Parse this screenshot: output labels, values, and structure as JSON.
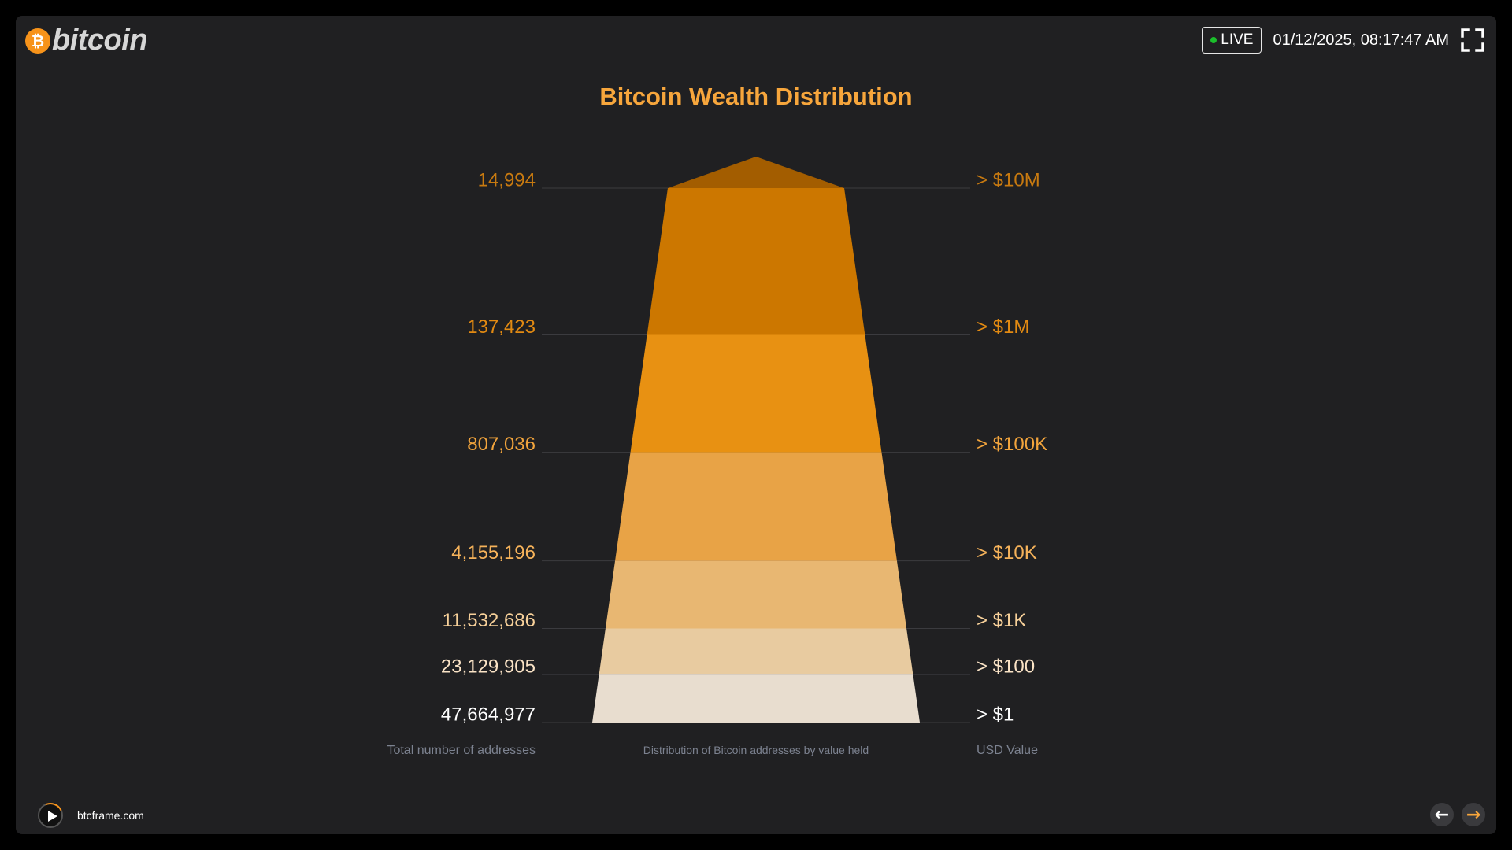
{
  "header": {
    "logo_symbol": "₿",
    "logo_text": "bitcoin",
    "live_label": "LIVE",
    "datetime": "01/12/2025, 08:17:47 AM"
  },
  "colors": {
    "accent": "#f7a63c",
    "live_dot": "#1bbf2b",
    "gridline": "#3b3b3f",
    "caption": "#7c8290"
  },
  "chart_data": {
    "type": "pyramid",
    "title": "Bitcoin Wealth Distribution",
    "left_caption": "Total number of addresses",
    "center_caption": "Distribution of Bitcoin addresses by value held",
    "right_caption": "USD Value",
    "tiers": [
      {
        "addresses": 14994,
        "label": "14,994",
        "usd": "> $10M",
        "color": "#a35d00",
        "text_color": "#c87a10"
      },
      {
        "addresses": 137423,
        "label": "137,423",
        "usd": "> $1M",
        "color": "#cc7700",
        "text_color": "#e28a12"
      },
      {
        "addresses": 807036,
        "label": "807,036",
        "usd": "> $100K",
        "color": "#e89112",
        "text_color": "#f2a43c"
      },
      {
        "addresses": 4155196,
        "label": "4,155,196",
        "usd": "> $10K",
        "color": "#e8a346",
        "text_color": "#f5b25a"
      },
      {
        "addresses": 11532686,
        "label": "11,532,686",
        "usd": "> $1K",
        "color": "#e8b772",
        "text_color": "#f8d19a"
      },
      {
        "addresses": 23129905,
        "label": "23,129,905",
        "usd": "> $100",
        "color": "#e8cba0",
        "text_color": "#fae3c6"
      },
      {
        "addresses": 47664977,
        "label": "47,664,977",
        "usd": "> $1",
        "color": "#e8ddcf",
        "text_color": "#ffffff"
      }
    ]
  },
  "footer": {
    "site": "btcframe.com",
    "prev_arrow": "←",
    "next_arrow": "→"
  }
}
